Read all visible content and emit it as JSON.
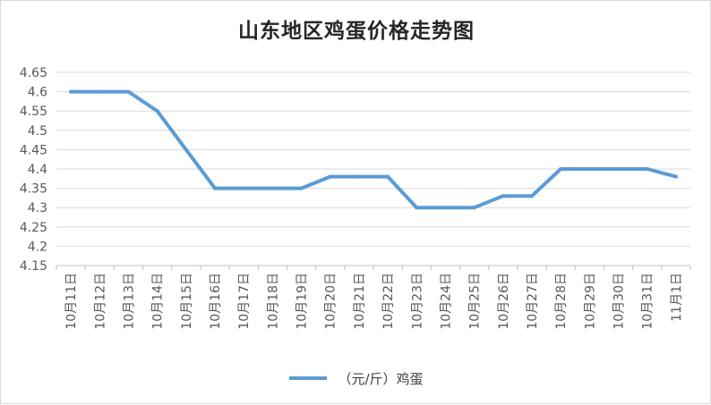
{
  "chart_data": {
    "type": "line",
    "title": "山东地区鸡蛋价格走势图",
    "categories": [
      "10月11日",
      "10月12日",
      "10月13日",
      "10月14日",
      "10月15日",
      "10月16日",
      "10月17日",
      "10月18日",
      "10月19日",
      "10月20日",
      "10月21日",
      "10月22日",
      "10月23日",
      "10月24日",
      "10月25日",
      "10月26日",
      "10月27日",
      "10月28日",
      "10月29日",
      "10月30日",
      "10月31日",
      "11月1日"
    ],
    "series": [
      {
        "name": "（元/斤）鸡蛋",
        "color": "#5b9bd5",
        "values": [
          4.6,
          4.6,
          4.6,
          4.55,
          4.45,
          4.35,
          4.35,
          4.35,
          4.35,
          4.38,
          4.38,
          4.38,
          4.3,
          4.3,
          4.3,
          4.33,
          4.33,
          4.4,
          4.4,
          4.4,
          4.4,
          4.38
        ]
      }
    ],
    "ylim": [
      4.15,
      4.65
    ],
    "yticks": [
      "4.65",
      "4.6",
      "4.55",
      "4.5",
      "4.45",
      "4.4",
      "4.35",
      "4.3",
      "4.25",
      "4.2",
      "4.15"
    ],
    "xlabel": "",
    "ylabel": "",
    "grid": true,
    "legend_position": "bottom"
  }
}
